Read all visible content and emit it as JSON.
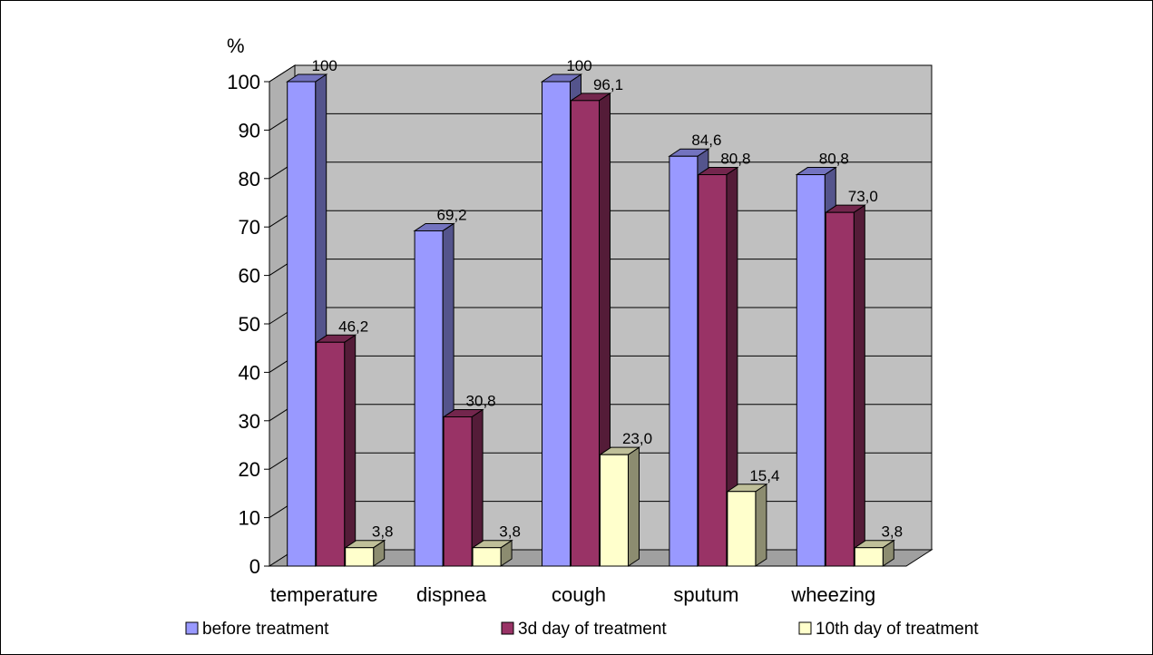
{
  "chart_data": {
    "type": "bar",
    "ylabel": "%",
    "ylim": [
      0,
      100
    ],
    "yticks": [
      "0",
      "10",
      "20",
      "30",
      "40",
      "50",
      "60",
      "70",
      "80",
      "90",
      "100"
    ],
    "grid": true,
    "legend_position": "bottom",
    "categories": [
      "temperature",
      "dispnea",
      "cough",
      "sputum",
      "wheezing"
    ],
    "series": [
      {
        "name": "before treatment",
        "values": [
          100,
          69.2,
          100,
          84.6,
          80.8
        ],
        "labels": [
          "100",
          "69,2",
          "100",
          "84,6",
          "80,8"
        ],
        "color": "#9999ff"
      },
      {
        "name": "3d day of treatment",
        "values": [
          46.2,
          30.8,
          96.1,
          80.8,
          73.0
        ],
        "labels": [
          "46,2",
          "30,8",
          "96,1",
          "80,8",
          "73,0"
        ],
        "color": "#993366"
      },
      {
        "name": "10th day of treatment",
        "values": [
          3.8,
          3.8,
          23.0,
          15.4,
          3.8
        ],
        "labels": [
          "3,8",
          "3,8",
          "23,0",
          "15,4",
          "3,8"
        ],
        "color": "#ffffcc"
      }
    ],
    "colors": {
      "wall": "#c0c0c0",
      "floor": "#a0a0a0",
      "side_wall": "#b0b0b0"
    }
  }
}
